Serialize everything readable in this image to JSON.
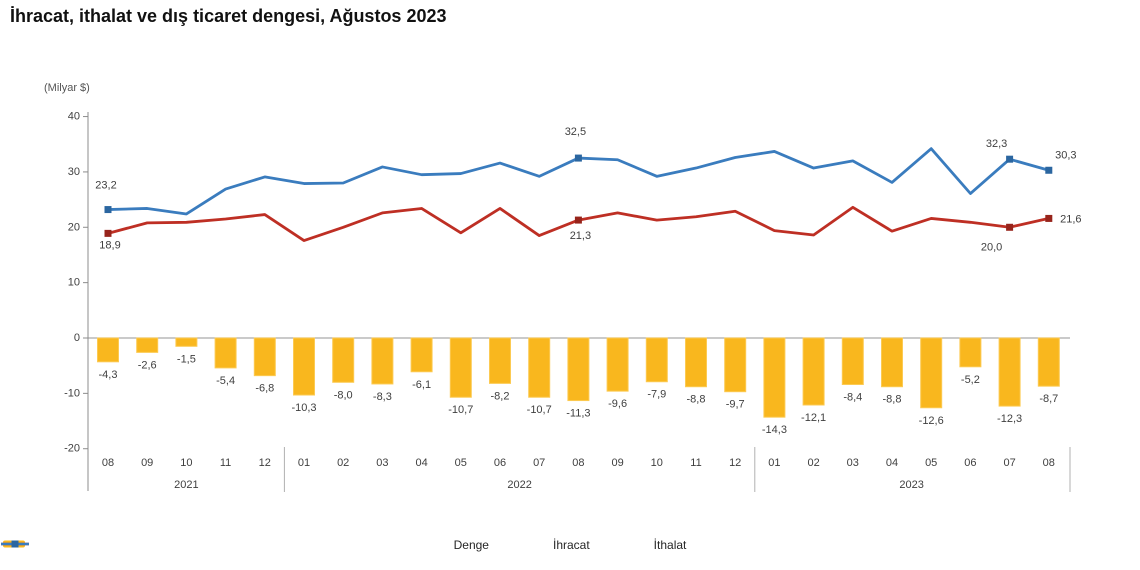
{
  "title": "İhracat, ithalat ve dış ticaret dengesi, Ağustos 2023",
  "unit_label": "(Milyar $)",
  "legend": [
    {
      "label": "Denge",
      "type": "bar",
      "color": "#F9B71E",
      "marker_color": "#F9B71E"
    },
    {
      "label": "İhracat",
      "type": "line",
      "color": "#BE2F24",
      "marker_color": "#97241B"
    },
    {
      "label": "İthalat",
      "type": "line",
      "color": "#3A7CBE",
      "marker_color": "#2B66A0"
    }
  ],
  "chart_data": {
    "type": "combo-bar-line",
    "title": "İhracat, ithalat ve dış ticaret dengesi, Ağustos 2023",
    "ylabel": "(Milyar $)",
    "ylim": [
      -20,
      40
    ],
    "yticks": [
      40,
      30,
      20,
      10,
      0,
      -10,
      -20
    ],
    "grid": false,
    "legend_position": "bottom",
    "categories": [
      "08",
      "09",
      "10",
      "11",
      "12",
      "01",
      "02",
      "03",
      "04",
      "05",
      "06",
      "07",
      "08",
      "09",
      "10",
      "11",
      "12",
      "01",
      "02",
      "03",
      "04",
      "05",
      "06",
      "07",
      "08"
    ],
    "year_groups": [
      {
        "label": "2021",
        "count": 5
      },
      {
        "label": "2022",
        "count": 12
      },
      {
        "label": "2023",
        "count": 8
      }
    ],
    "marker_indices": [
      0,
      12,
      23,
      24
    ],
    "series": [
      {
        "name": "Denge",
        "type": "bar",
        "color": "#F9B71E",
        "values": [
          -4.3,
          -2.6,
          -1.5,
          -5.4,
          -6.8,
          -10.3,
          -8.0,
          -8.3,
          -6.1,
          -10.7,
          -8.2,
          -10.7,
          -11.3,
          -9.6,
          -7.9,
          -8.8,
          -9.7,
          -14.3,
          -12.1,
          -8.4,
          -8.8,
          -12.6,
          -5.2,
          -12.3,
          -8.7
        ],
        "labels": [
          "-4,3",
          "-2,6",
          "-1,5",
          "-5,4",
          "-6,8",
          "-10,3",
          "-8,0",
          "-8,3",
          "-6,1",
          "-10,7",
          "-8,2",
          "-10,7",
          "-11,3",
          "-9,6",
          "-7,9",
          "-8,8",
          "-9,7",
          "-14,3",
          "-12,1",
          "-8,4",
          "-8,8",
          "-12,6",
          "-5,2",
          "-12,3",
          "-8,7"
        ]
      },
      {
        "name": "İhracat",
        "type": "line",
        "color": "#BE2F24",
        "marker_color": "#97241B",
        "values": [
          18.9,
          20.8,
          20.9,
          21.5,
          22.3,
          17.6,
          20.0,
          22.6,
          23.4,
          19.0,
          23.4,
          18.5,
          21.3,
          22.6,
          21.3,
          21.9,
          22.9,
          19.4,
          18.6,
          23.6,
          19.3,
          21.6,
          20.9,
          20.0,
          21.6
        ],
        "point_labels": {
          "0": "18,9",
          "12": "21,3",
          "23": "20,0",
          "24": "21,6"
        }
      },
      {
        "name": "İthalat",
        "type": "line",
        "color": "#3A7CBE",
        "marker_color": "#2B66A0",
        "values": [
          23.2,
          23.4,
          22.4,
          26.9,
          29.1,
          27.9,
          28.0,
          30.9,
          29.5,
          29.7,
          31.6,
          29.2,
          32.5,
          32.2,
          29.2,
          30.7,
          32.6,
          33.7,
          30.7,
          32.0,
          28.1,
          34.2,
          26.1,
          32.3,
          30.3
        ],
        "point_labels": {
          "0": "23,2",
          "12": "32,5",
          "23": "32,3",
          "24": "30,3"
        }
      }
    ]
  }
}
